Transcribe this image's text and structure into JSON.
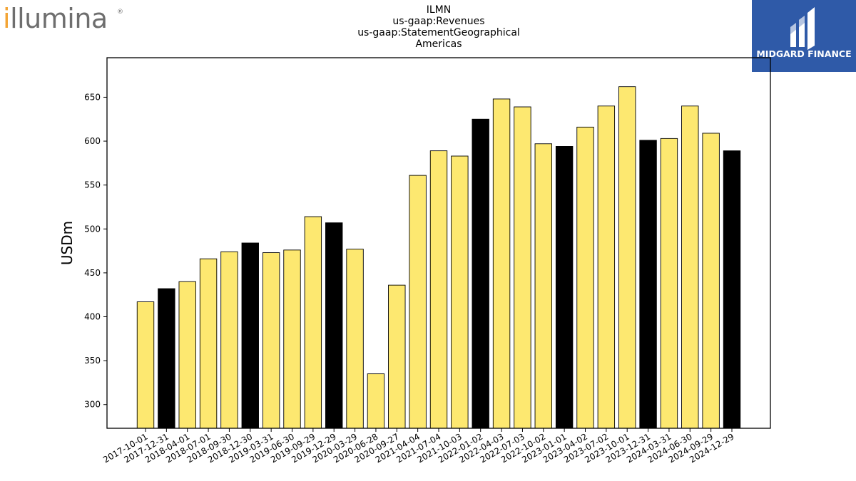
{
  "header": {
    "ticker": "ILMN",
    "concept": "us-gaap:Revenues",
    "axis": "us-gaap:StatementGeographical",
    "member": "Americas"
  },
  "logos": {
    "left_text_i": "i",
    "left_text_rest": "llumina",
    "left_registered": "®",
    "right_text": "MIDGARD FINANCE",
    "right_bg": "#2f5aa8"
  },
  "colors": {
    "bar_quarter": "#fde870",
    "bar_year_end": "#000000",
    "bar_edge": "#000000"
  },
  "chart_data": {
    "type": "bar",
    "title": "ILMN us-gaap:Revenues us-gaap:StatementGeographical Americas",
    "xlabel": "",
    "ylabel": "USDm",
    "ylim": [
      273,
      695
    ],
    "yticks": [
      300,
      350,
      400,
      450,
      500,
      550,
      600,
      650
    ],
    "grid": false,
    "categories": [
      "2017-10-01",
      "2017-12-31",
      "2018-04-01",
      "2018-07-01",
      "2018-09-30",
      "2018-12-30",
      "2019-03-31",
      "2019-06-30",
      "2019-09-29",
      "2019-12-29",
      "2020-03-29",
      "2020-06-28",
      "2020-09-27",
      "2021-04-04",
      "2021-07-04",
      "2021-10-03",
      "2022-01-02",
      "2022-04-03",
      "2022-07-03",
      "2022-10-02",
      "2023-01-01",
      "2023-04-02",
      "2023-07-02",
      "2023-10-01",
      "2023-12-31",
      "2024-03-31",
      "2024-06-30",
      "2024-09-29",
      "2024-12-29"
    ],
    "values": [
      417,
      432,
      440,
      466,
      474,
      484,
      473,
      476,
      514,
      507,
      477,
      335,
      436,
      561,
      589,
      583,
      625,
      648,
      639,
      597,
      594,
      616,
      640,
      662,
      601,
      603,
      640,
      609,
      589
    ],
    "highlight": [
      false,
      true,
      false,
      false,
      false,
      true,
      false,
      false,
      false,
      true,
      false,
      false,
      false,
      false,
      false,
      false,
      true,
      false,
      false,
      false,
      true,
      false,
      false,
      false,
      true,
      false,
      false,
      false,
      true
    ]
  }
}
